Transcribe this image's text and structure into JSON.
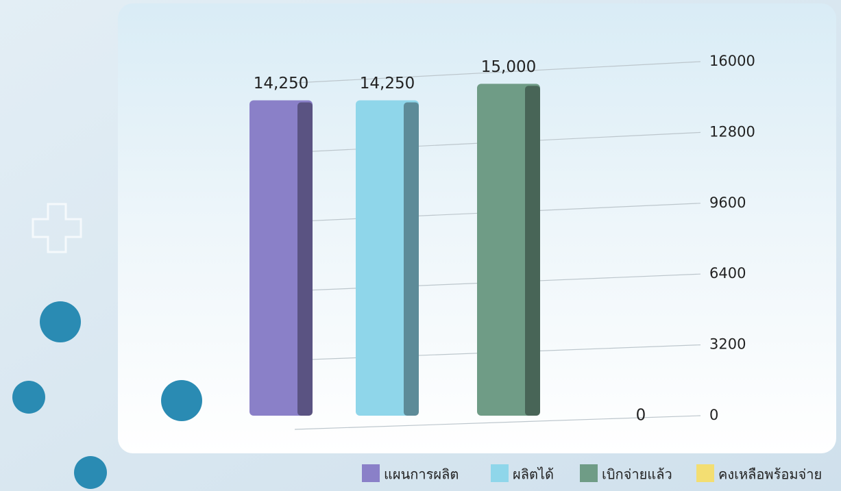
{
  "chart_data": {
    "type": "bar",
    "series": [
      {
        "name": "แผนการผลิต",
        "color": "#8a80c8",
        "values": [
          14250
        ],
        "value_labels": [
          "14,250"
        ]
      },
      {
        "name": "ผลิตได้",
        "color": "#8fd6ea",
        "values": [
          14250
        ],
        "value_labels": [
          "14,250"
        ]
      },
      {
        "name": "เบิกจ่ายแล้ว",
        "color": "#6f9c86",
        "values": [
          15000
        ],
        "value_labels": [
          "15,000"
        ]
      },
      {
        "name": "คงเหลือพร้อมจ่าย",
        "color": "#f3de72",
        "values": [
          0
        ],
        "value_labels": [
          "0"
        ]
      }
    ],
    "ylim": [
      0,
      16000
    ],
    "yticks": [
      0,
      3200,
      6400,
      9600,
      12800,
      16000
    ],
    "grid": true
  }
}
